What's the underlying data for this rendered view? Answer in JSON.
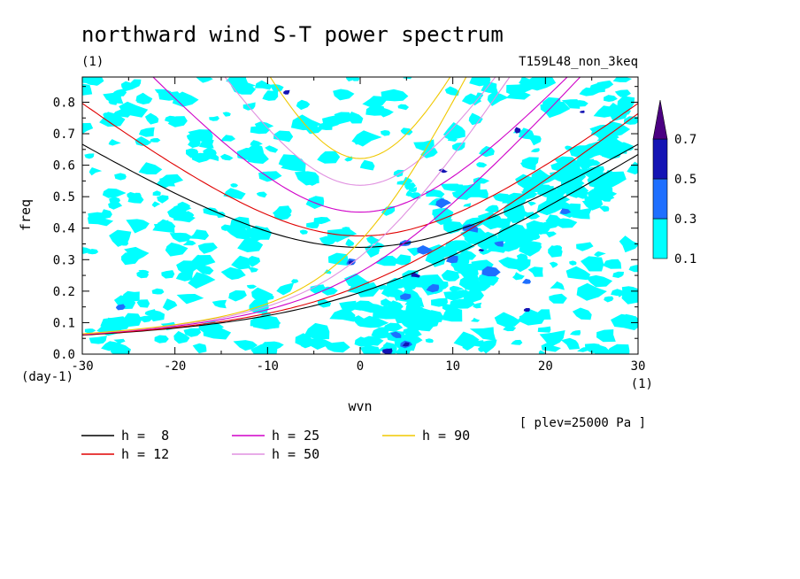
{
  "chart_data": {
    "type": "contour",
    "title": "northward wind S-T power spectrum",
    "title_unit": "(1)",
    "run_label": "T159L48_non_3keq",
    "xlabel": "wvn",
    "x_unit": "(1)",
    "ylabel": "freq",
    "y_unit": "(day-1)",
    "xlim": [
      -30,
      30
    ],
    "ylim": [
      0.0,
      0.88
    ],
    "x_ticks": [
      -30,
      -20,
      -10,
      0,
      10,
      20,
      30
    ],
    "x_tick_labels": [
      "-30",
      "-20",
      "-10",
      "0",
      "10",
      "20",
      "30"
    ],
    "y_ticks": [
      0.0,
      0.1,
      0.2,
      0.3,
      0.4,
      0.5,
      0.6,
      0.7,
      0.8
    ],
    "y_tick_labels": [
      "0.0",
      "0.1",
      "0.2",
      "0.3",
      "0.4",
      "0.5",
      "0.6",
      "0.7",
      "0.8"
    ],
    "level_note": "[ plev=25000 Pa ]",
    "colorbar": {
      "levels": [
        0.1,
        0.3,
        0.5,
        0.7
      ],
      "level_labels": [
        "0.1",
        "0.3",
        "0.5",
        "0.7"
      ],
      "colors": [
        "#00ffff",
        "#1e6fff",
        "#1414b4",
        "#4b0082"
      ]
    },
    "dispersion_curves": [
      {
        "label": "h =  8",
        "h": 8,
        "color": "#000000"
      },
      {
        "label": "h = 12",
        "h": 12,
        "color": "#e00000"
      },
      {
        "label": "h = 25",
        "h": 25,
        "color": "#d000c8"
      },
      {
        "label": "h = 50",
        "h": 50,
        "color": "#e090e0"
      },
      {
        "label": "h = 90",
        "h": 90,
        "color": "#f0c800"
      }
    ],
    "legend_position": "below-plot"
  }
}
